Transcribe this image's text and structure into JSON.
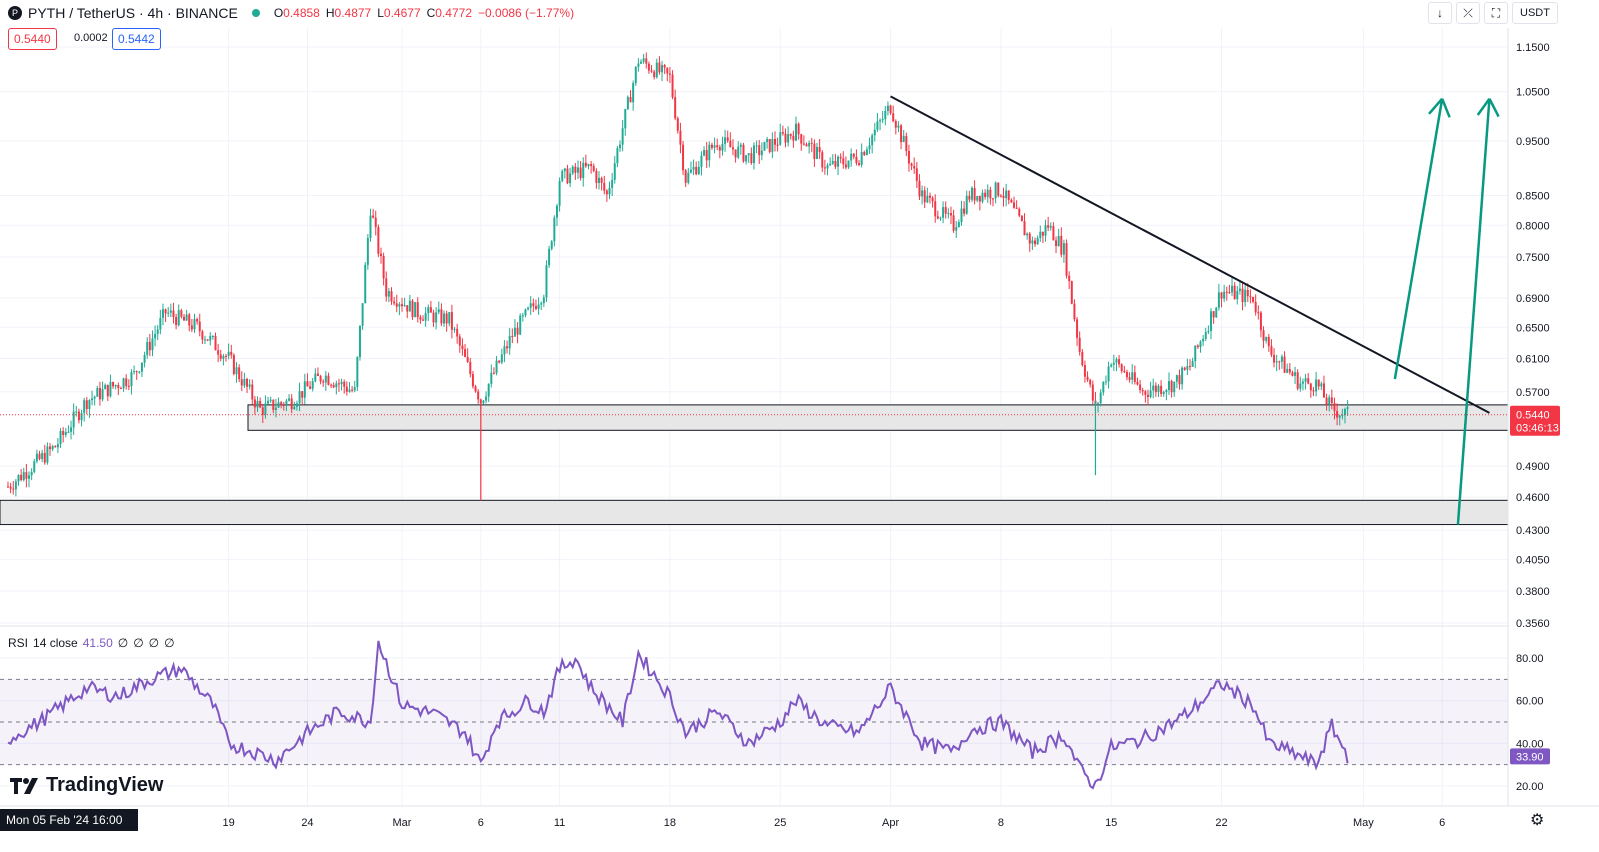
{
  "header": {
    "symbol": "PYTH / TetherUS · 4h · BINANCE",
    "o_label": "O",
    "o": "0.4858",
    "h_label": "H",
    "h": "0.4877",
    "l_label": "L",
    "l": "0.4677",
    "c_label": "C",
    "c": "0.4772",
    "change": "−0.0086 (−1.77%)"
  },
  "price_boxes": {
    "sell": "0.5440",
    "spread": "0.0002",
    "buy": "0.5442"
  },
  "toolbar": {
    "currency": "USDT"
  },
  "rsi": {
    "label": "RSI",
    "params": "14 close",
    "value": "41.50",
    "symbols": [
      "∅",
      "∅",
      "∅",
      "∅"
    ]
  },
  "brand": "TradingView",
  "crosshair_date": "Mon 05 Feb '24  16:00",
  "last_price": {
    "price": "0.5440",
    "countdown": "03:46:13",
    "rsi_value": "33.90"
  },
  "colors": {
    "up": "#22ab94",
    "down": "#f23645",
    "rsi": "#7e57c2",
    "arrow": "#089981"
  },
  "chart_data": [
    {
      "type": "candlestick",
      "title": "PYTH / TetherUS · 4h · BINANCE",
      "x_range": [
        "2024-02-05",
        "2024-05-09"
      ],
      "x_ticks": [
        "19",
        "24",
        "Mar",
        "6",
        "11",
        "18",
        "25",
        "Apr",
        "8",
        "15",
        "22",
        "May",
        "6"
      ],
      "y_ticks": [
        "1.1500",
        "1.0500",
        "0.9500",
        "0.8500",
        "0.8000",
        "0.7500",
        "0.6900",
        "0.6500",
        "0.6100",
        "0.5700",
        "0.5440",
        "0.4900",
        "0.4600",
        "0.4300",
        "0.4050",
        "0.3800",
        "0.3560"
      ],
      "ylim": [
        0.356,
        1.16
      ],
      "y_scale": "log",
      "series": [
        {
          "name": "PYTH/USDT",
          "anchor_closes": [
            [
              "2024-02-05",
              0.47
            ],
            [
              "2024-02-08",
              0.51
            ],
            [
              "2024-02-10",
              0.56
            ],
            [
              "2024-02-13",
              0.59
            ],
            [
              "2024-02-15",
              0.67
            ],
            [
              "2024-02-17",
              0.65
            ],
            [
              "2024-02-19",
              0.61
            ],
            [
              "2024-02-21",
              0.55
            ],
            [
              "2024-02-23",
              0.56
            ],
            [
              "2024-02-25",
              0.59
            ],
            [
              "2024-02-27",
              0.57
            ],
            [
              "2024-02-28",
              0.83
            ],
            [
              "2024-02-29",
              0.7
            ],
            [
              "2024-03-02",
              0.67
            ],
            [
              "2024-03-04",
              0.66
            ],
            [
              "2024-03-06",
              0.56
            ],
            [
              "2024-03-08",
              0.64
            ],
            [
              "2024-03-10",
              0.7
            ],
            [
              "2024-03-11",
              0.88
            ],
            [
              "2024-03-13",
              0.9
            ],
            [
              "2024-03-14",
              0.85
            ],
            [
              "2024-03-16",
              1.12
            ],
            [
              "2024-03-18",
              1.08
            ],
            [
              "2024-03-19",
              0.88
            ],
            [
              "2024-03-21",
              0.95
            ],
            [
              "2024-03-23",
              0.92
            ],
            [
              "2024-03-26",
              0.97
            ],
            [
              "2024-03-28",
              0.9
            ],
            [
              "2024-03-30",
              0.92
            ],
            [
              "2024-04-01",
              1.02
            ],
            [
              "2024-04-03",
              0.85
            ],
            [
              "2024-04-05",
              0.8
            ],
            [
              "2024-04-06",
              0.85
            ],
            [
              "2024-04-08",
              0.86
            ],
            [
              "2024-04-10",
              0.77
            ],
            [
              "2024-04-11",
              0.8
            ],
            [
              "2024-04-12",
              0.76
            ],
            [
              "2024-04-13",
              0.62
            ],
            [
              "2024-04-14",
              0.55
            ],
            [
              "2024-04-15",
              0.61
            ],
            [
              "2024-04-17",
              0.57
            ],
            [
              "2024-04-19",
              0.58
            ],
            [
              "2024-04-20",
              0.6
            ],
            [
              "2024-04-22",
              0.7
            ],
            [
              "2024-04-24",
              0.69
            ],
            [
              "2024-04-25",
              0.62
            ],
            [
              "2024-04-27",
              0.58
            ],
            [
              "2024-04-28",
              0.58
            ],
            [
              "2024-04-29",
              0.55
            ],
            [
              "2024-04-30",
              0.544
            ]
          ]
        }
      ],
      "annotations": {
        "trendline": [
          [
            "2024-04-01",
            1.04
          ],
          [
            "2024-05-09",
            0.546
          ]
        ],
        "support_zones": [
          [
            0.527,
            0.555
          ],
          [
            0.435,
            0.457
          ]
        ],
        "arrows_up": [
          {
            "from": [
              "2024-05-03",
              0.585
            ],
            "to": [
              "2024-05-06",
              1.035
            ]
          },
          {
            "from": [
              "2024-05-07",
              0.435
            ],
            "to": [
              "2024-05-09",
              1.035
            ]
          }
        ],
        "wicks": [
          {
            "date": "2024-03-06",
            "low": 0.457
          },
          {
            "date": "2024-04-14",
            "low": 0.481
          }
        ]
      },
      "legend": "top-left",
      "grid": true
    },
    {
      "type": "line",
      "title": "RSI 14 close",
      "ylim": [
        15,
        88
      ],
      "y_ticks": [
        "80.00",
        "60.00",
        "40.00",
        "20.00"
      ],
      "bands": [
        30,
        50,
        70
      ],
      "series": [
        {
          "name": "RSI",
          "anchor_values": [
            [
              "2024-02-05",
              42
            ],
            [
              "2024-02-07",
              50
            ],
            [
              "2024-02-10",
              66
            ],
            [
              "2024-02-12",
              62
            ],
            [
              "2024-02-14",
              70
            ],
            [
              "2024-02-16",
              75
            ],
            [
              "2024-02-18",
              58
            ],
            [
              "2024-02-19",
              40
            ],
            [
              "2024-02-21",
              35
            ],
            [
              "2024-02-22",
              32
            ],
            [
              "2024-02-24",
              45
            ],
            [
              "2024-02-26",
              55
            ],
            [
              "2024-02-28",
              50
            ],
            [
              "2024-02-28T12:00",
              88
            ],
            [
              "2024-03-01",
              58
            ],
            [
              "2024-03-03",
              54
            ],
            [
              "2024-03-05",
              45
            ],
            [
              "2024-03-06",
              30
            ],
            [
              "2024-03-07",
              50
            ],
            [
              "2024-03-09",
              60
            ],
            [
              "2024-03-10",
              55
            ],
            [
              "2024-03-11",
              75
            ],
            [
              "2024-03-12",
              80
            ],
            [
              "2024-03-13",
              66
            ],
            [
              "2024-03-15",
              50
            ],
            [
              "2024-03-16",
              82
            ],
            [
              "2024-03-18",
              62
            ],
            [
              "2024-03-19",
              45
            ],
            [
              "2024-03-21",
              55
            ],
            [
              "2024-03-23",
              40
            ],
            [
              "2024-03-25",
              50
            ],
            [
              "2024-03-26",
              60
            ],
            [
              "2024-03-28",
              48
            ],
            [
              "2024-03-30",
              45
            ],
            [
              "2024-04-01",
              66
            ],
            [
              "2024-04-03",
              40
            ],
            [
              "2024-04-05",
              36
            ],
            [
              "2024-04-06",
              46
            ],
            [
              "2024-04-08",
              50
            ],
            [
              "2024-04-10",
              36
            ],
            [
              "2024-04-12",
              44
            ],
            [
              "2024-04-13",
              28
            ],
            [
              "2024-04-14",
              20
            ],
            [
              "2024-04-15",
              38
            ],
            [
              "2024-04-17",
              42
            ],
            [
              "2024-04-19",
              50
            ],
            [
              "2024-04-20",
              55
            ],
            [
              "2024-04-22",
              68
            ],
            [
              "2024-04-24",
              58
            ],
            [
              "2024-04-25",
              40
            ],
            [
              "2024-04-27",
              34
            ],
            [
              "2024-04-28",
              30
            ],
            [
              "2024-04-29",
              48
            ],
            [
              "2024-04-30",
              34
            ]
          ]
        }
      ]
    }
  ]
}
